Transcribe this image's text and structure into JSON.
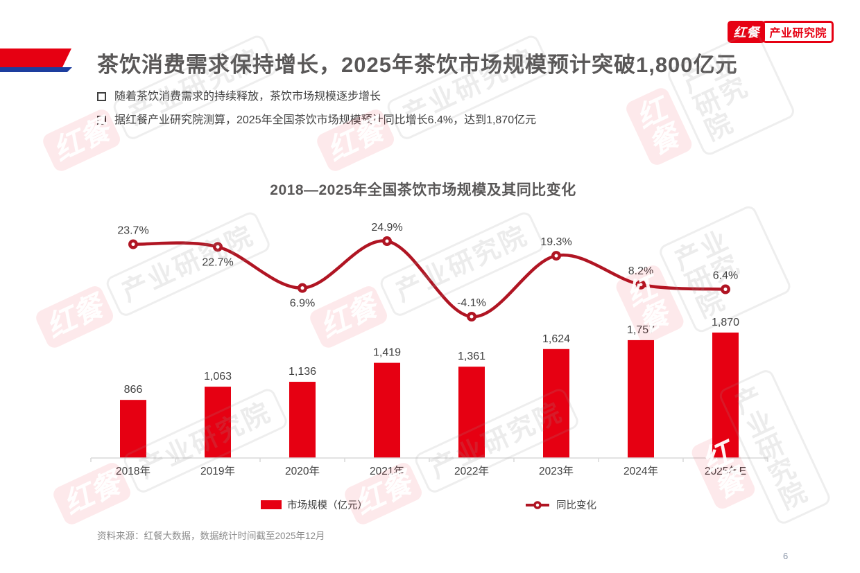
{
  "logo": {
    "badge": "红餐",
    "institute": "产业研究院"
  },
  "slide": {
    "title": "茶饮消费需求保持增长，2025年茶饮市场规模预计突破1,800亿元",
    "bullets": [
      "随着茶饮消费需求的持续释放，茶饮市场规模逐步增长",
      "据红餐产业研究院测算，2025年全国茶饮市场规模预计同比增长6.4%，达到1,870亿元"
    ],
    "source": "资料来源：红餐大数据，数据统计时间截至2025年12月",
    "page_number": "6"
  },
  "watermark": {
    "badge": "红餐",
    "text": "产业研究院"
  },
  "chart_data": {
    "type": "bar+line",
    "title": "2018—2025年全国茶饮市场规模及其同比变化",
    "categories": [
      "2018年",
      "2019年",
      "2020年",
      "2021年",
      "2022年",
      "2023年",
      "2024年",
      "2025年E"
    ],
    "series": [
      {
        "name": "市场规模（亿元）",
        "type": "bar",
        "values": [
          866,
          1063,
          1136,
          1419,
          1361,
          1624,
          1757,
          1870
        ],
        "labels": [
          "866",
          "1,063",
          "1,136",
          "1,419",
          "1,361",
          "1,624",
          "1,757",
          "1,870"
        ],
        "color": "#E60012"
      },
      {
        "name": "同比变化",
        "type": "line",
        "values": [
          23.7,
          22.7,
          6.9,
          24.9,
          -4.1,
          19.3,
          8.2,
          6.4
        ],
        "labels": [
          "23.7%",
          "22.7%",
          "6.9%",
          "24.9%",
          "-4.1%",
          "19.3%",
          "8.2%",
          "6.4%"
        ],
        "label_positions": [
          "above",
          "below",
          "below",
          "above",
          "above",
          "above",
          "above",
          "above"
        ],
        "color": "#B01523"
      }
    ],
    "legend_position": "bottom",
    "axes": {
      "x_visible": true,
      "y_visible": false,
      "gridlines": false
    },
    "ylim_bar": [
      0,
      2000
    ],
    "ylim_pct": [
      -10,
      30
    ]
  },
  "colors": {
    "brand_red": "#E60012",
    "line_red": "#B01523",
    "accent_blue": "#1D3E9E",
    "title_gray": "#595757",
    "body_gray": "#404040",
    "axis_gray": "#D9D9D9",
    "source_gray": "#8C8C8C"
  }
}
